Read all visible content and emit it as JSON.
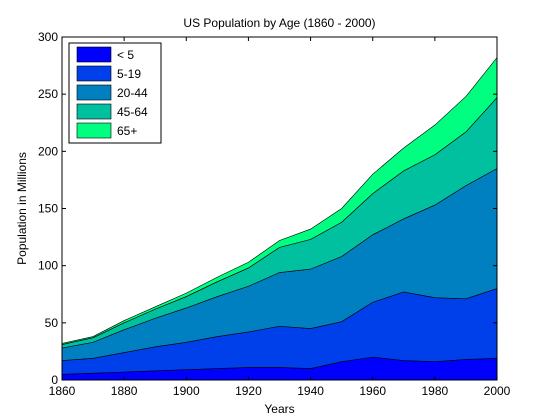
{
  "chart_data": {
    "type": "area",
    "stacked": true,
    "title": "US Population by Age (1860 - 2000)",
    "xlabel": "Years",
    "ylabel": "Population in Millions",
    "xlim": [
      1860,
      2000
    ],
    "ylim": [
      0,
      300
    ],
    "x_ticks": [
      1860,
      1880,
      1900,
      1920,
      1940,
      1960,
      1980,
      2000
    ],
    "y_ticks": [
      0,
      50,
      100,
      150,
      200,
      250,
      300
    ],
    "grid": false,
    "legend_position": "top-left",
    "x": [
      1860,
      1870,
      1880,
      1890,
      1900,
      1910,
      1920,
      1930,
      1940,
      1950,
      1960,
      1970,
      1980,
      1990,
      2000
    ],
    "series": [
      {
        "name": "< 5",
        "color": "#0000ff",
        "values": [
          5,
          6,
          7,
          8,
          9,
          10,
          11,
          11,
          10,
          16,
          20,
          17,
          16,
          18,
          19
        ]
      },
      {
        "name": "5-19",
        "color": "#0040ea",
        "values": [
          12,
          13,
          17,
          21,
          24,
          28,
          31,
          36,
          35,
          35,
          48,
          60,
          56,
          53,
          61
        ]
      },
      {
        "name": "20-44",
        "color": "#0080c0",
        "values": [
          11,
          14,
          20,
          25,
          30,
          35,
          40,
          47,
          52,
          57,
          59,
          64,
          81,
          99,
          105
        ]
      },
      {
        "name": "45-64",
        "color": "#00c0a0",
        "values": [
          3,
          4,
          6,
          8,
          10,
          13,
          16,
          22,
          26,
          30,
          36,
          42,
          44,
          47,
          62
        ]
      },
      {
        "name": "65+",
        "color": "#00ff80",
        "values": [
          1,
          1,
          2,
          2,
          3,
          4,
          5,
          6,
          9,
          12,
          17,
          20,
          26,
          31,
          35
        ]
      }
    ]
  }
}
